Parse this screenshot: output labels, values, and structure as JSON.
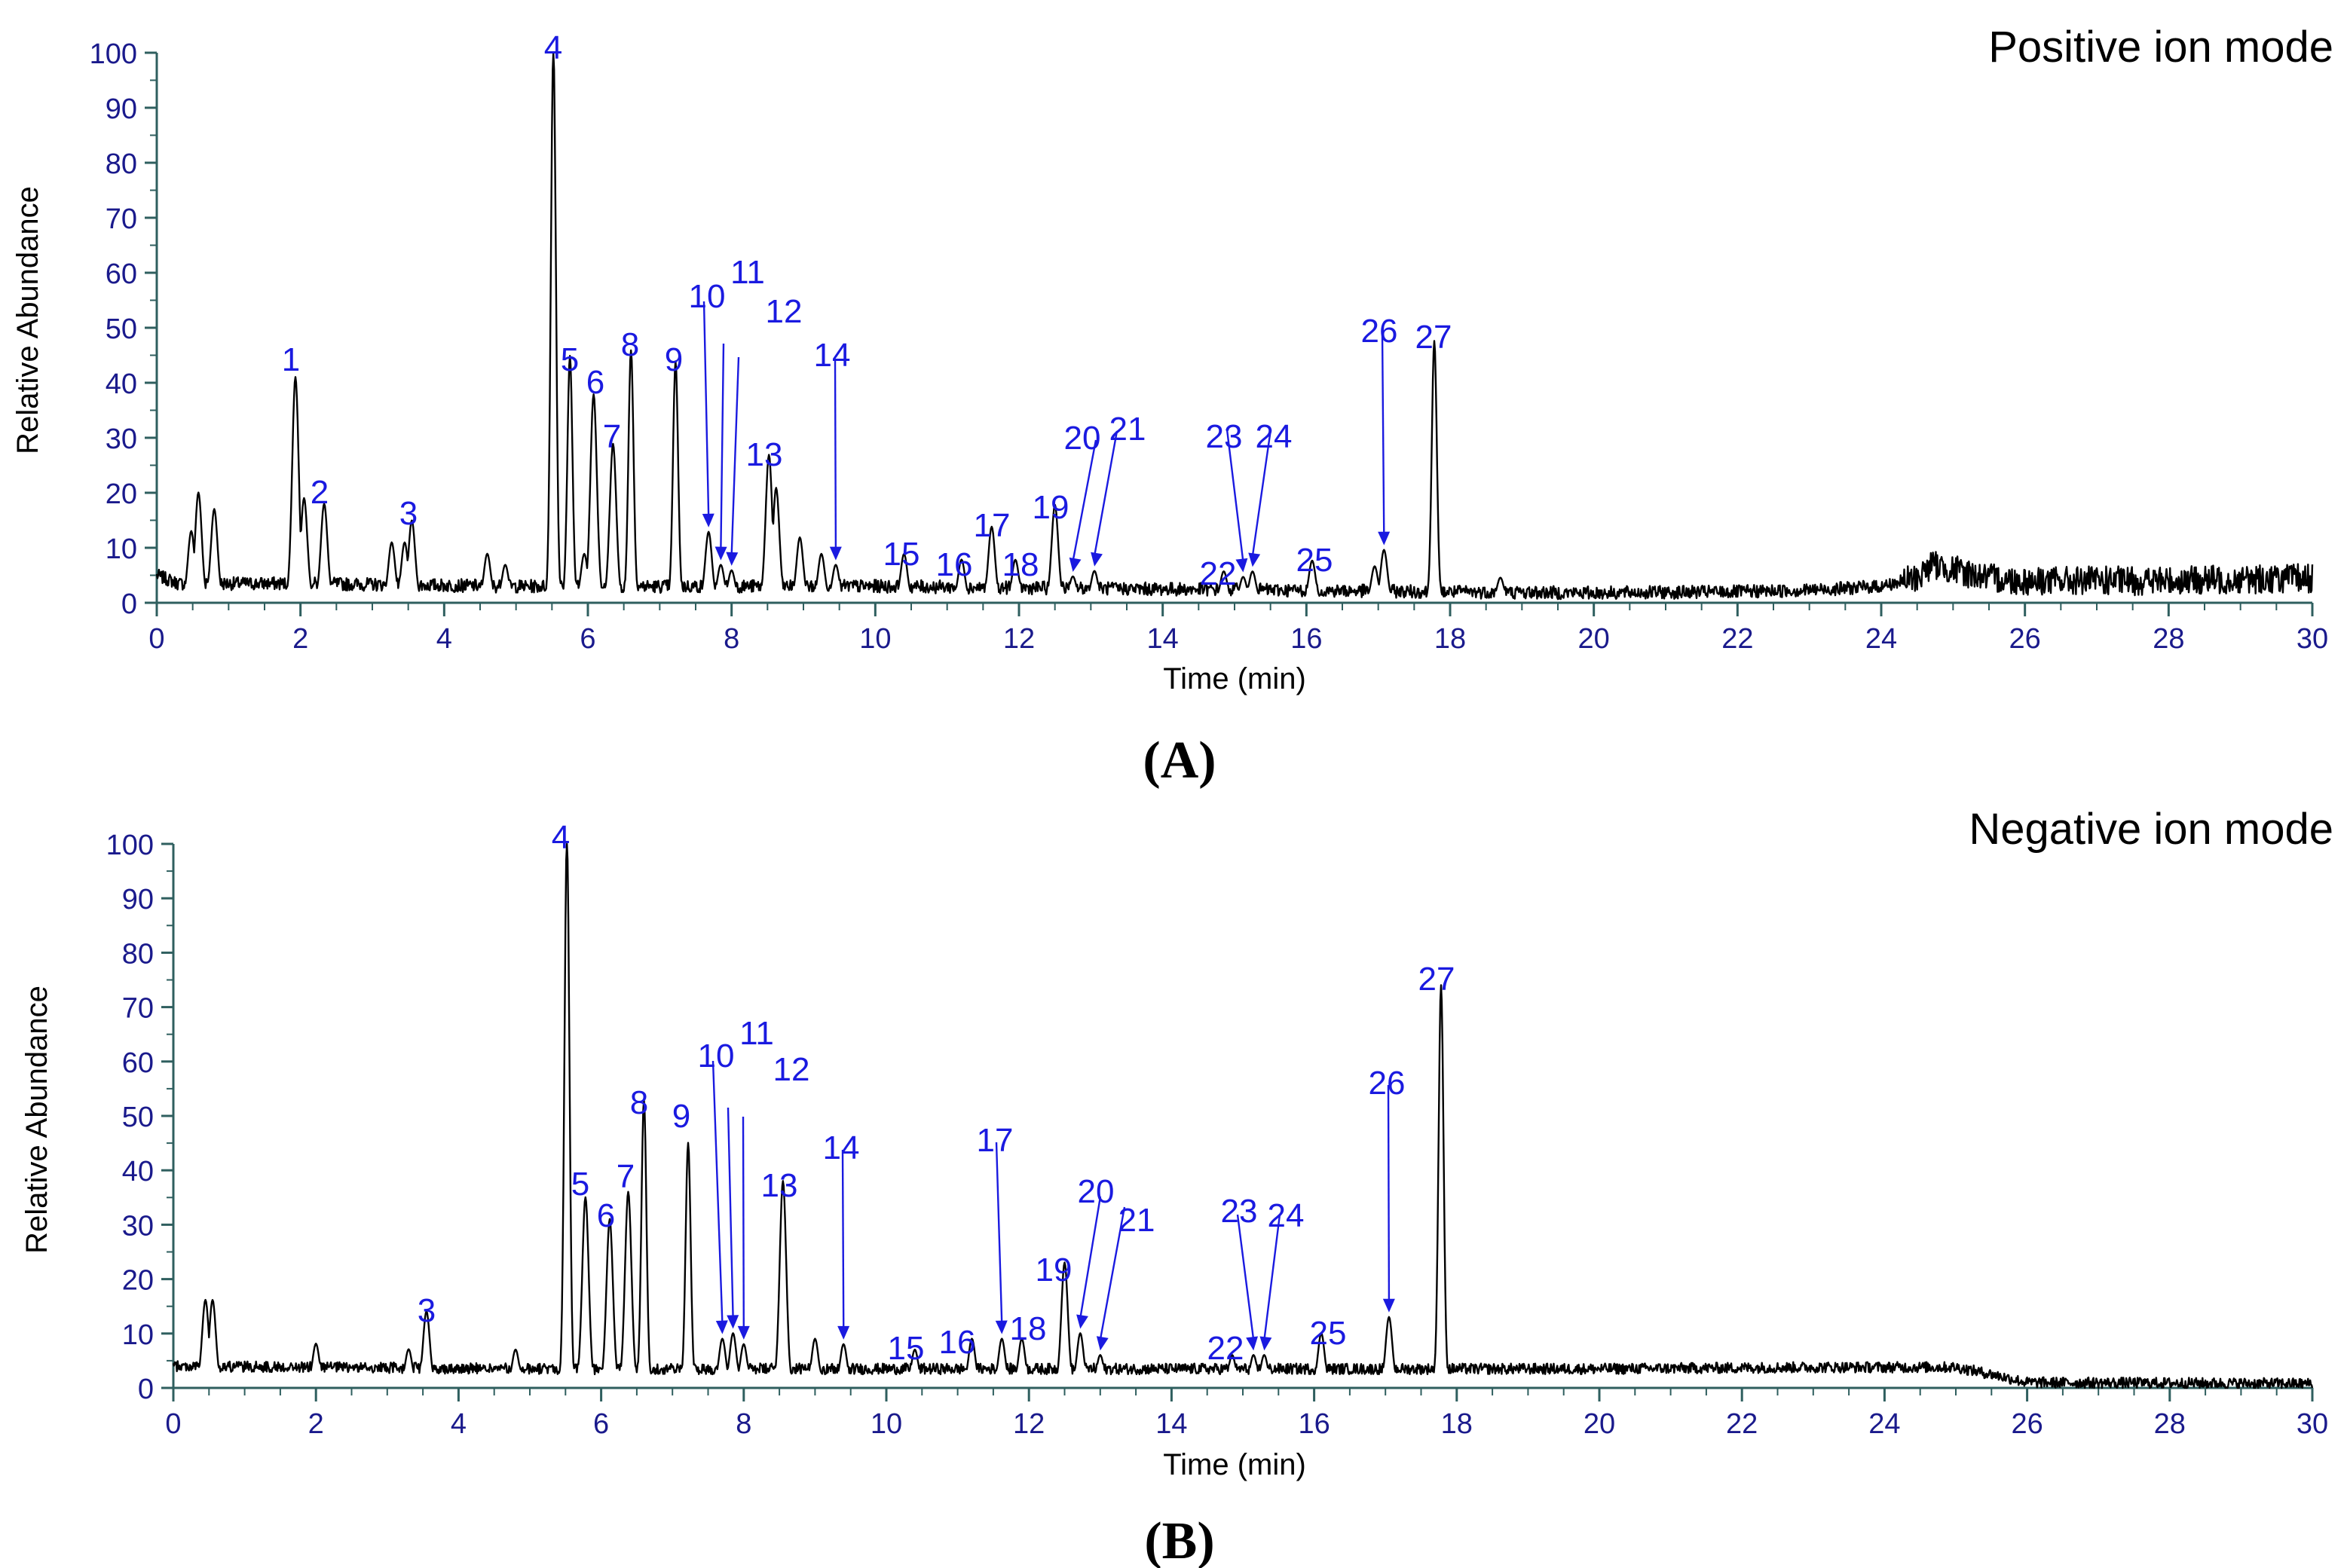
{
  "chart_data": [
    {
      "panel": "A",
      "type": "line",
      "title": "Positive ion mode",
      "caption": "(A)",
      "xlabel": "Time (min)",
      "ylabel": "Relative Abundance",
      "xlim": [
        0,
        30
      ],
      "ylim": [
        0,
        100
      ],
      "x_ticks": [
        0,
        2,
        4,
        6,
        8,
        10,
        12,
        14,
        16,
        18,
        20,
        22,
        24,
        26,
        28,
        30
      ],
      "y_ticks": [
        0,
        10,
        20,
        30,
        40,
        50,
        60,
        70,
        80,
        90,
        100
      ],
      "baseline": [
        [
          0,
          5
        ],
        [
          0.3,
          3.5
        ],
        [
          2,
          3.5
        ],
        [
          5,
          3
        ],
        [
          10,
          3
        ],
        [
          14,
          2.5
        ],
        [
          18,
          2
        ],
        [
          20,
          1.8
        ],
        [
          22,
          2
        ],
        [
          23,
          2.3
        ],
        [
          24,
          3
        ],
        [
          24.5,
          4.5
        ],
        [
          24.7,
          7
        ],
        [
          25,
          6
        ],
        [
          25.5,
          4.5
        ],
        [
          26,
          4
        ],
        [
          28,
          4
        ],
        [
          30,
          4.5
        ]
      ],
      "noise": 1.2,
      "peaks": [
        {
          "t": 0.48,
          "h": 12
        },
        {
          "t": 0.58,
          "h": 19
        },
        {
          "t": 0.8,
          "h": 16
        },
        {
          "t": 1.93,
          "h": 40,
          "label": "1"
        },
        {
          "t": 2.05,
          "h": 18
        },
        {
          "t": 2.33,
          "h": 17,
          "label": "2"
        },
        {
          "t": 3.27,
          "h": 10
        },
        {
          "t": 3.55,
          "h": 14,
          "label": "3"
        },
        {
          "t": 3.45,
          "h": 10
        },
        {
          "t": 4.6,
          "h": 8
        },
        {
          "t": 4.85,
          "h": 6
        },
        {
          "t": 5.52,
          "h": 100,
          "label": "4"
        },
        {
          "t": 5.75,
          "h": 44,
          "label": "5"
        },
        {
          "t": 5.95,
          "h": 8
        },
        {
          "t": 6.08,
          "h": 37,
          "label": "6"
        },
        {
          "t": 6.35,
          "h": 28,
          "label": "7"
        },
        {
          "t": 6.6,
          "h": 45,
          "label": "8"
        },
        {
          "t": 7.22,
          "h": 43,
          "label": "9"
        },
        {
          "t": 7.68,
          "h": 12,
          "label": "10",
          "arrow": true
        },
        {
          "t": 7.85,
          "h": 6,
          "label": "11",
          "arrow": true
        },
        {
          "t": 8.0,
          "h": 5,
          "label": "12",
          "arrow": true
        },
        {
          "t": 8.52,
          "h": 26,
          "label": "13"
        },
        {
          "t": 8.62,
          "h": 20
        },
        {
          "t": 8.95,
          "h": 11
        },
        {
          "t": 9.25,
          "h": 8
        },
        {
          "t": 9.45,
          "h": 6,
          "label": "14",
          "arrow": true
        },
        {
          "t": 10.4,
          "h": 8,
          "label": "15"
        },
        {
          "t": 11.2,
          "h": 7,
          "label": "16"
        },
        {
          "t": 11.62,
          "h": 13,
          "label": "17"
        },
        {
          "t": 11.95,
          "h": 7,
          "label": "18"
        },
        {
          "t": 12.5,
          "h": 17,
          "label": "19"
        },
        {
          "t": 12.75,
          "h": 4,
          "label": "20",
          "arrow": true
        },
        {
          "t": 13.05,
          "h": 5,
          "label": "21",
          "arrow": true
        },
        {
          "t": 14.85,
          "h": 5,
          "label": "22"
        },
        {
          "t": 15.12,
          "h": 4,
          "label": "23",
          "arrow": true
        },
        {
          "t": 15.25,
          "h": 5,
          "label": "24",
          "arrow": true
        },
        {
          "t": 16.08,
          "h": 7,
          "label": "25"
        },
        {
          "t": 16.95,
          "h": 6
        },
        {
          "t": 17.08,
          "h": 9,
          "label": "26",
          "arrow": true
        },
        {
          "t": 17.78,
          "h": 47,
          "label": "27"
        },
        {
          "t": 18.7,
          "h": 4
        }
      ]
    },
    {
      "panel": "B",
      "type": "line",
      "title": "Negative ion mode",
      "caption": "(B)",
      "xlabel": "Time (min)",
      "ylabel": "Relative Abundance",
      "xlim": [
        0,
        30
      ],
      "ylim": [
        0,
        100
      ],
      "x_ticks": [
        0,
        2,
        4,
        6,
        8,
        10,
        12,
        14,
        16,
        18,
        20,
        22,
        24,
        26,
        28,
        30
      ],
      "y_ticks": [
        0,
        10,
        20,
        30,
        40,
        50,
        60,
        70,
        80,
        90,
        100
      ],
      "baseline": [
        [
          0,
          4
        ],
        [
          5,
          3.5
        ],
        [
          10,
          3.5
        ],
        [
          15,
          3.5
        ],
        [
          20,
          3.5
        ],
        [
          23,
          3.8
        ],
        [
          25,
          3.8
        ],
        [
          25.5,
          2.5
        ],
        [
          26,
          1
        ],
        [
          30,
          0.8
        ]
      ],
      "noise": 1.0,
      "peaks": [
        {
          "t": 0.45,
          "h": 15
        },
        {
          "t": 0.55,
          "h": 15
        },
        {
          "t": 2.0,
          "h": 7
        },
        {
          "t": 3.3,
          "h": 6
        },
        {
          "t": 3.55,
          "h": 13,
          "label": "3"
        },
        {
          "t": 4.8,
          "h": 6
        },
        {
          "t": 5.52,
          "h": 100,
          "label": "4"
        },
        {
          "t": 5.78,
          "h": 34,
          "label": "5"
        },
        {
          "t": 6.12,
          "h": 30,
          "label": "6"
        },
        {
          "t": 6.38,
          "h": 35,
          "label": "7"
        },
        {
          "t": 6.6,
          "h": 52,
          "label": "8"
        },
        {
          "t": 7.22,
          "h": 44,
          "label": "9"
        },
        {
          "t": 7.7,
          "h": 8,
          "label": "10",
          "arrow": true
        },
        {
          "t": 7.85,
          "h": 9,
          "label": "11",
          "arrow": true
        },
        {
          "t": 8.0,
          "h": 7,
          "label": "12",
          "arrow": true
        },
        {
          "t": 8.55,
          "h": 37,
          "label": "13"
        },
        {
          "t": 9.0,
          "h": 8
        },
        {
          "t": 9.4,
          "h": 7,
          "label": "14",
          "arrow": true
        },
        {
          "t": 10.4,
          "h": 6,
          "label": "15"
        },
        {
          "t": 11.2,
          "h": 8,
          "label": "16"
        },
        {
          "t": 11.62,
          "h": 8,
          "label": "17",
          "arrow": true
        },
        {
          "t": 11.9,
          "h": 8,
          "label": "18"
        },
        {
          "t": 12.5,
          "h": 22,
          "label": "19"
        },
        {
          "t": 12.72,
          "h": 9,
          "label": "20",
          "arrow": true
        },
        {
          "t": 13.0,
          "h": 5,
          "label": "21",
          "arrow": true
        },
        {
          "t": 14.85,
          "h": 5,
          "label": "22"
        },
        {
          "t": 15.15,
          "h": 5,
          "label": "23",
          "arrow": true
        },
        {
          "t": 15.3,
          "h": 5,
          "label": "24",
          "arrow": true
        },
        {
          "t": 16.1,
          "h": 9,
          "label": "25"
        },
        {
          "t": 17.05,
          "h": 12,
          "label": "26",
          "arrow": true
        },
        {
          "t": 17.78,
          "h": 73,
          "label": "27"
        }
      ]
    }
  ]
}
